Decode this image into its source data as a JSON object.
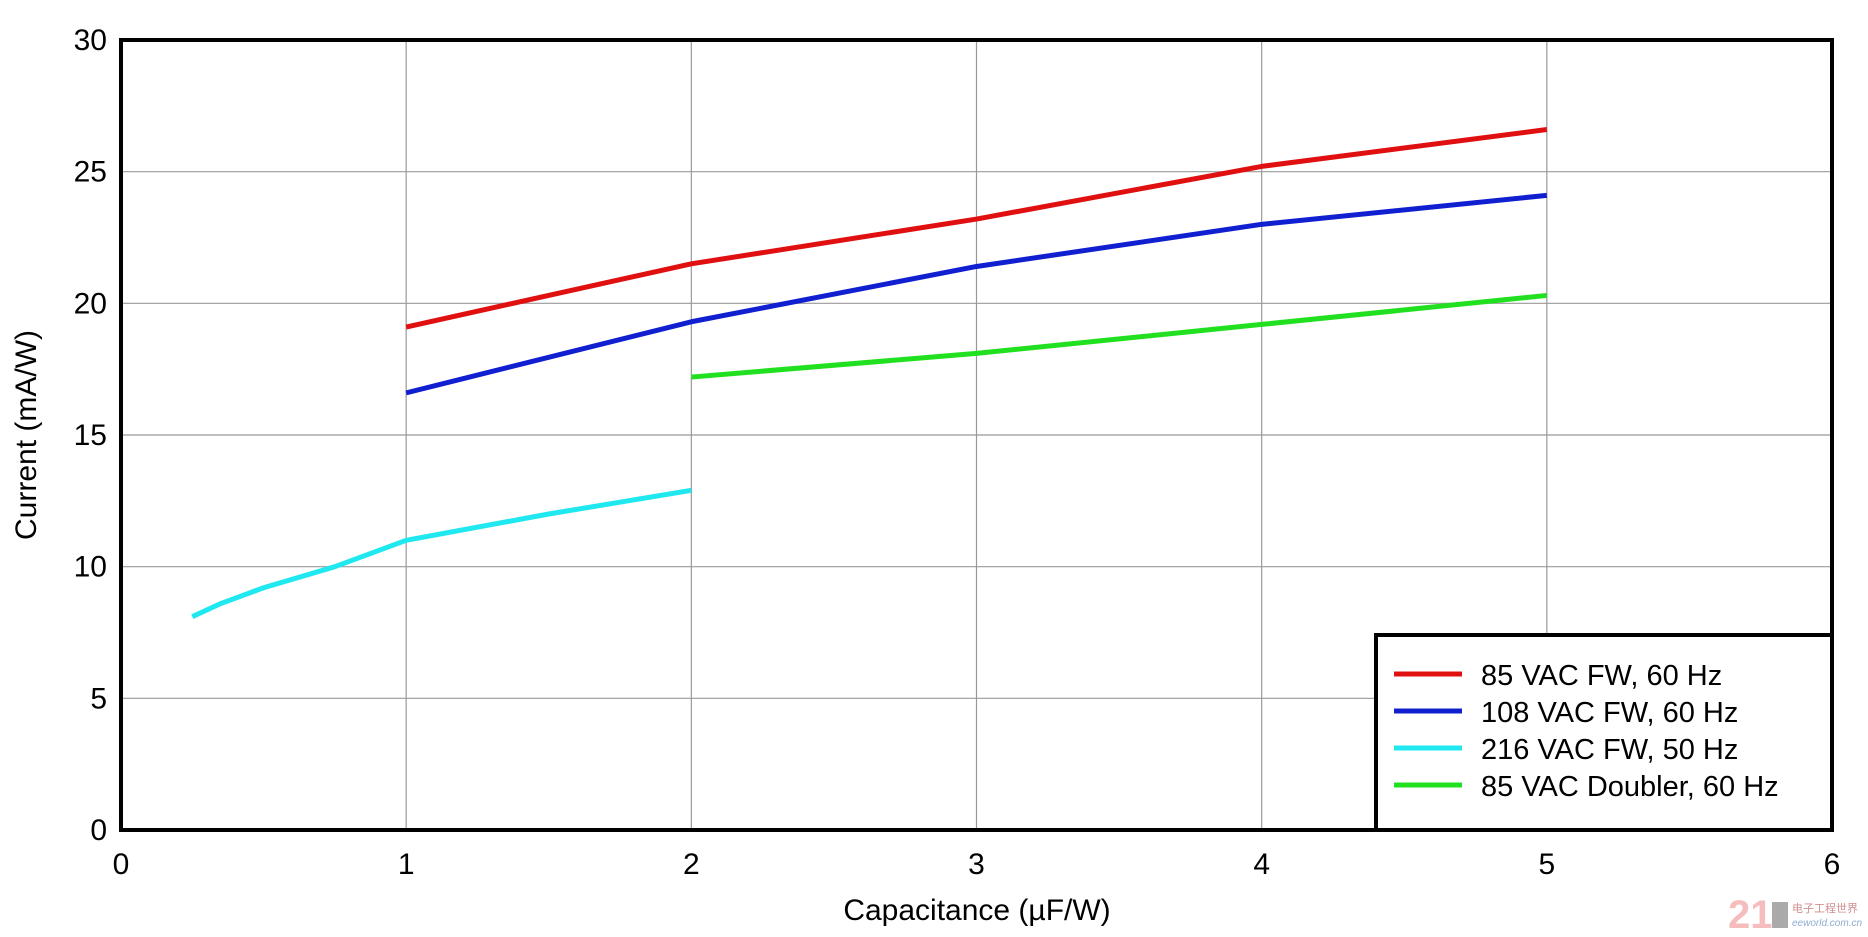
{
  "chart_data": {
    "type": "line",
    "title": "",
    "xlabel": "Capacitance (µF/W)",
    "ylabel": "Current (mA/W)",
    "xlim": [
      0,
      6
    ],
    "ylim": [
      0,
      30
    ],
    "xticks": [
      0,
      1,
      2,
      3,
      4,
      5,
      6
    ],
    "yticks": [
      0,
      5,
      10,
      15,
      20,
      25,
      30
    ],
    "grid": true,
    "legend_position": "bottom-right",
    "series": [
      {
        "name": "85 VAC FW, 60 Hz",
        "color": "#e01010",
        "x": [
          1,
          2,
          3,
          4,
          5
        ],
        "y": [
          19.1,
          21.5,
          23.2,
          25.2,
          26.6
        ]
      },
      {
        "name": "108 VAC FW, 60 Hz",
        "color": "#1020d0",
        "x": [
          1,
          2,
          3,
          4,
          5
        ],
        "y": [
          16.6,
          19.3,
          21.4,
          23.0,
          24.1
        ]
      },
      {
        "name": "216 VAC FW, 50 Hz",
        "color": "#20e8f0",
        "x": [
          0.25,
          0.35,
          0.5,
          0.75,
          1,
          1.5,
          2
        ],
        "y": [
          8.1,
          8.6,
          9.2,
          10.0,
          11.0,
          12.0,
          12.9
        ]
      },
      {
        "name": "85 VAC Doubler, 60 Hz",
        "color": "#20e020",
        "x": [
          2,
          3,
          4,
          5
        ],
        "y": [
          17.2,
          18.1,
          19.2,
          20.3
        ]
      }
    ]
  },
  "watermark": {
    "brand": "21IC",
    "sub": "电子工程世界",
    "site": "eeworld.com.cn"
  }
}
